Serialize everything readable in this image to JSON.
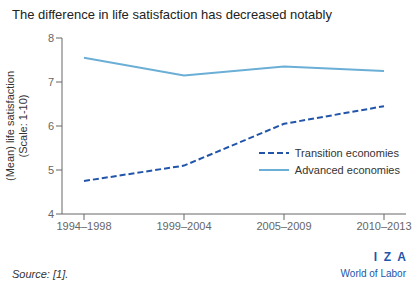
{
  "chart_data": {
    "type": "line",
    "title": "The difference in life satisfaction has decreased notably",
    "y_label": "(Mean) life satisfaction\n(Scale: 1-10)",
    "categories": [
      "1994–1998",
      "1999–2004",
      "2005–2009",
      "2010–2013"
    ],
    "series": [
      {
        "name": "Transition economies",
        "color": "#2255AA",
        "line_style": "dashed",
        "values": [
          4.75,
          5.1,
          6.05,
          6.45
        ]
      },
      {
        "name": "Advanced economies",
        "color": "#6BAED6",
        "line_style": "solid",
        "values": [
          7.55,
          7.15,
          7.35,
          7.25
        ]
      }
    ],
    "ylim": [
      4.0,
      8.0
    ],
    "yticks": [
      4,
      5,
      6,
      7,
      8
    ],
    "grid": false,
    "legend": "lower right",
    "annotations": [
      "Source: [1].",
      "I  Z  A",
      "World of Labor"
    ]
  }
}
